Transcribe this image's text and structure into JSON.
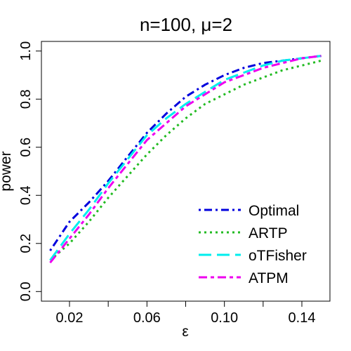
{
  "chart_data": {
    "type": "line",
    "title": "n=100, μ=2",
    "xlabel": "ε",
    "ylabel": "power",
    "xlim": [
      0.0055,
      0.1545
    ],
    "ylim": [
      -0.04,
      1.04
    ],
    "x_ticks": [
      0.02,
      0.04,
      0.06,
      0.08,
      0.1,
      0.12,
      0.14
    ],
    "x_tick_labels": [
      "0.02",
      "",
      "0.06",
      "",
      "0.10",
      "",
      "0.14"
    ],
    "y_ticks": [
      0.0,
      0.2,
      0.4,
      0.6,
      0.8,
      1.0
    ],
    "y_tick_labels": [
      "0.0",
      "0.2",
      "0.4",
      "0.6",
      "0.8",
      "1.0"
    ],
    "grid": false,
    "legend_position": "bottom-right",
    "x": [
      0.01,
      0.02,
      0.03,
      0.04,
      0.05,
      0.06,
      0.07,
      0.08,
      0.09,
      0.1,
      0.11,
      0.12,
      0.13,
      0.14,
      0.15
    ],
    "series": [
      {
        "name": "Optimal",
        "color": "#0000dd",
        "dash": "dotdash",
        "values": [
          0.17,
          0.29,
          0.37,
          0.46,
          0.56,
          0.66,
          0.74,
          0.81,
          0.86,
          0.9,
          0.93,
          0.95,
          0.96,
          0.97,
          0.98
        ]
      },
      {
        "name": "ARTP",
        "color": "#22bb22",
        "dash": "dotted",
        "values": [
          0.13,
          0.2,
          0.29,
          0.39,
          0.48,
          0.57,
          0.65,
          0.72,
          0.78,
          0.82,
          0.86,
          0.89,
          0.92,
          0.94,
          0.96
        ]
      },
      {
        "name": "oTFisher",
        "color": "#00eeee",
        "dash": "longdash",
        "values": [
          0.13,
          0.24,
          0.34,
          0.45,
          0.55,
          0.65,
          0.72,
          0.78,
          0.83,
          0.88,
          0.91,
          0.94,
          0.96,
          0.97,
          0.98
        ]
      },
      {
        "name": "ATPM",
        "color": "#ee00ee",
        "dash": "twodash",
        "values": [
          0.12,
          0.22,
          0.32,
          0.43,
          0.53,
          0.63,
          0.7,
          0.77,
          0.82,
          0.87,
          0.9,
          0.93,
          0.95,
          0.97,
          0.98
        ]
      }
    ]
  }
}
